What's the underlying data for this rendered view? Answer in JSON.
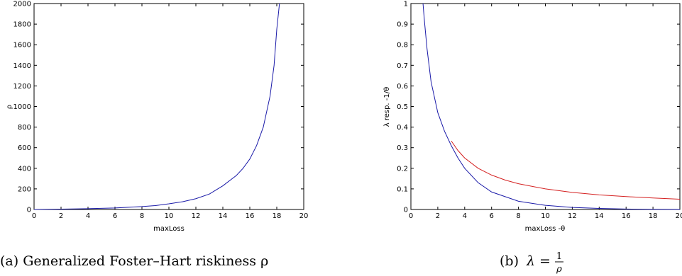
{
  "chart_data": [
    {
      "type": "line",
      "caption": "(a) Generalized Foster–Hart riskiness ρ",
      "xlabel": "maxLoss",
      "ylabel": "ρ",
      "xlim": [
        0,
        20
      ],
      "ylim": [
        0,
        2000
      ],
      "xticks": [
        "0",
        "2",
        "4",
        "6",
        "8",
        "10",
        "12",
        "14",
        "16",
        "18",
        "20"
      ],
      "yticks": [
        "0",
        "200",
        "400",
        "600",
        "800",
        "1000",
        "1200",
        "1400",
        "1600",
        "1800",
        "2000"
      ],
      "grid": false,
      "series": [
        {
          "color": "#1a1aa8",
          "x": [
            0,
            2,
            4,
            6,
            8,
            9,
            10,
            11,
            12,
            13,
            14,
            15,
            15.5,
            16,
            16.5,
            17,
            17.5,
            17.8,
            18,
            18.2
          ],
          "y": [
            0,
            3,
            8,
            15,
            28,
            38,
            55,
            75,
            105,
            150,
            230,
            330,
            400,
            490,
            620,
            800,
            1100,
            1400,
            1750,
            2000
          ]
        }
      ]
    },
    {
      "type": "line",
      "caption_prefix": "(b)",
      "caption_math": "λ = 1/ρ",
      "caption_lambda": "λ",
      "caption_num": "1",
      "caption_den": "ρ",
      "xlabel": "maxLoss -θ",
      "ylabel": "λ resp. -1/θ",
      "xlim": [
        0,
        20
      ],
      "ylim": [
        0,
        1
      ],
      "xticks": [
        "0",
        "2",
        "4",
        "6",
        "8",
        "10",
        "12",
        "14",
        "16",
        "18",
        "20"
      ],
      "yticks": [
        "0",
        "0.1",
        "0.2",
        "0.3",
        "0.4",
        "0.5",
        "0.6",
        "0.7",
        "0.8",
        "0.9",
        "1"
      ],
      "grid": false,
      "series": [
        {
          "color": "#1a1aa8",
          "x": [
            0.9,
            1.0,
            1.2,
            1.5,
            2.0,
            2.5,
            3.0,
            3.5,
            4.0,
            5.0,
            6.0,
            8.0,
            10.0,
            12.0,
            14.0,
            16.0,
            18.0,
            20.0
          ],
          "y": [
            1.0,
            0.92,
            0.78,
            0.62,
            0.47,
            0.38,
            0.31,
            0.25,
            0.2,
            0.13,
            0.085,
            0.04,
            0.02,
            0.01,
            0.005,
            0.002,
            0.001,
            0.0005
          ]
        },
        {
          "color": "#d42020",
          "x": [
            3.0,
            3.5,
            4.0,
            5.0,
            6.0,
            7.0,
            8.0,
            10.0,
            12.0,
            14.0,
            16.0,
            18.0,
            20.0
          ],
          "y": [
            0.333,
            0.286,
            0.25,
            0.2,
            0.167,
            0.143,
            0.125,
            0.1,
            0.083,
            0.071,
            0.0625,
            0.056,
            0.05
          ]
        }
      ]
    }
  ]
}
